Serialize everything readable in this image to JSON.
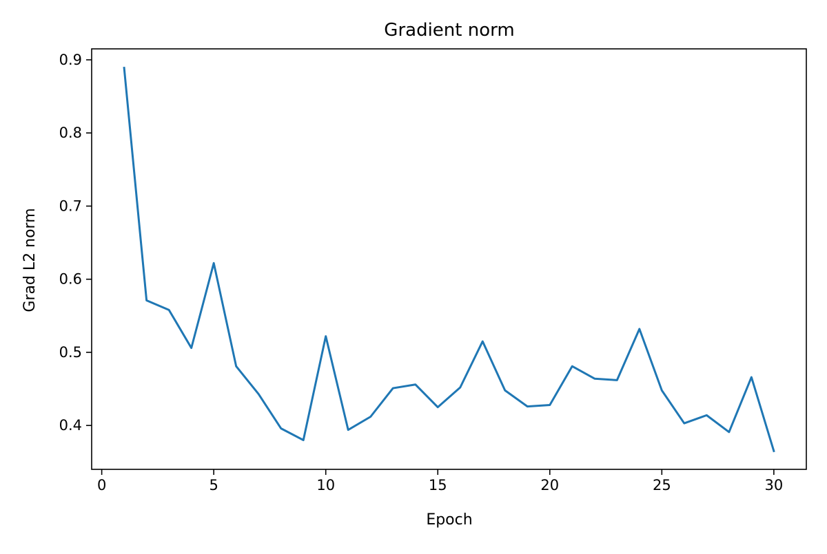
{
  "chart_data": {
    "type": "line",
    "title": "Gradient norm",
    "xlabel": "Epoch",
    "ylabel": "Grad L2 norm",
    "xlim": [
      -0.45,
      31.45
    ],
    "ylim": [
      0.34,
      0.915
    ],
    "xticks": [
      0,
      5,
      10,
      15,
      20,
      25,
      30
    ],
    "xtick_labels": [
      "0",
      "5",
      "10",
      "15",
      "20",
      "25",
      "30"
    ],
    "yticks": [
      0.4,
      0.5,
      0.6,
      0.7,
      0.8,
      0.9
    ],
    "ytick_labels": [
      "0.4",
      "0.5",
      "0.6",
      "0.7",
      "0.8",
      "0.9"
    ],
    "grid": false,
    "line_color": "#1f77b4",
    "x": [
      1,
      2,
      3,
      4,
      5,
      6,
      7,
      8,
      9,
      10,
      11,
      12,
      13,
      14,
      15,
      16,
      17,
      18,
      19,
      20,
      21,
      22,
      23,
      24,
      25,
      26,
      27,
      28,
      29,
      30
    ],
    "series": [
      {
        "values": [
          0.889,
          0.571,
          0.558,
          0.506,
          0.622,
          0.481,
          0.443,
          0.396,
          0.38,
          0.522,
          0.394,
          0.412,
          0.451,
          0.456,
          0.425,
          0.452,
          0.515,
          0.448,
          0.426,
          0.428,
          0.481,
          0.464,
          0.462,
          0.532,
          0.448,
          0.403,
          0.414,
          0.391,
          0.466,
          0.365
        ]
      }
    ]
  }
}
